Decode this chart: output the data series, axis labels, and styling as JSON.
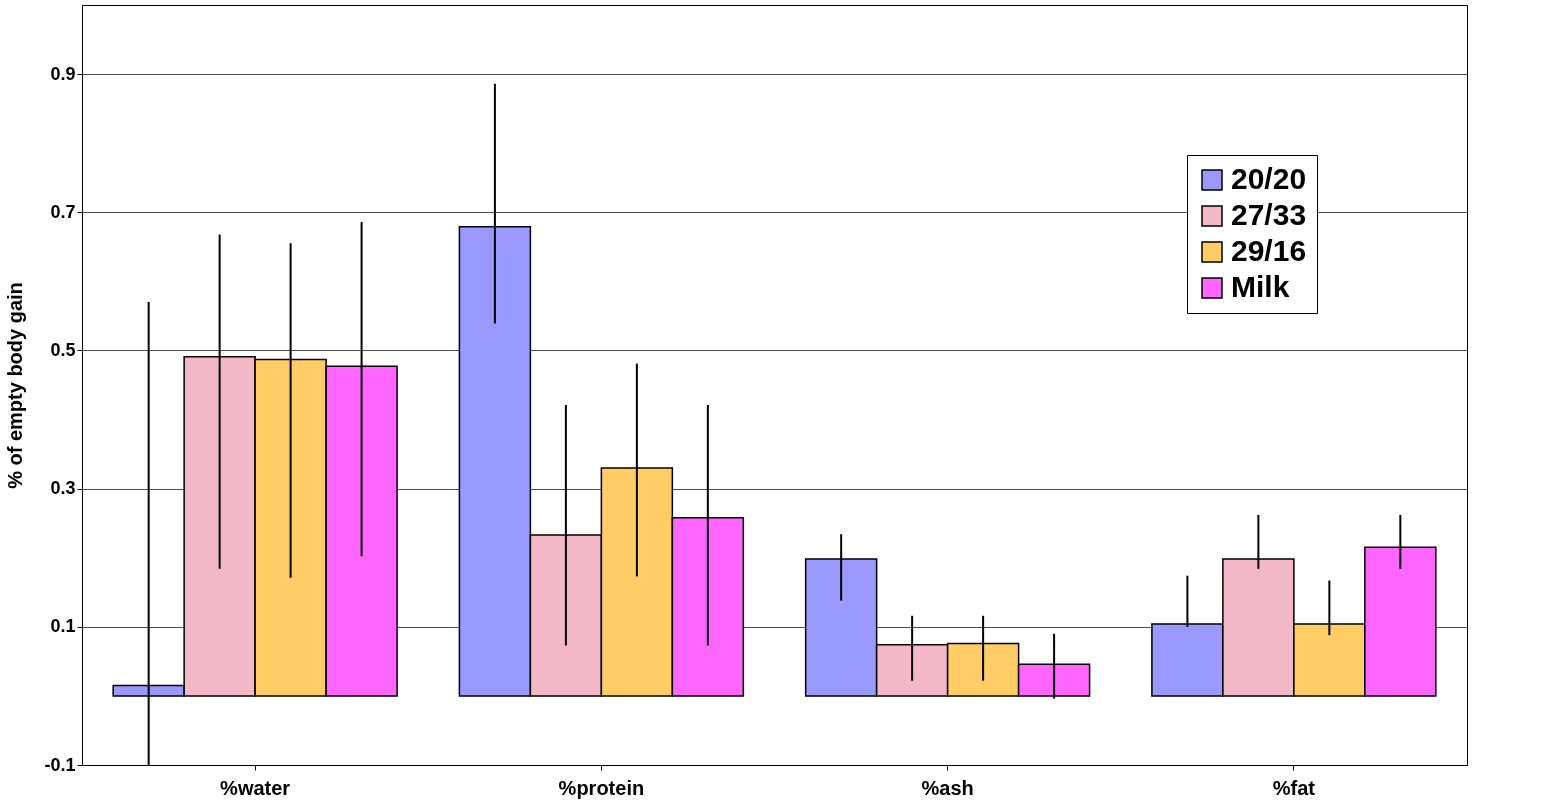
{
  "chart_data": {
    "type": "bar",
    "ylabel": "% of empty body gain",
    "categories": [
      "%water",
      "%protein",
      "%ash",
      "%fat"
    ],
    "series": [
      {
        "name": "20/20",
        "color": "#9999ff",
        "values": [
          0.015,
          0.679,
          0.198,
          0.104
        ],
        "errors": [
          [
            -0.1,
            0.57
          ],
          [
            0.539,
            0.886
          ],
          [
            0.138,
            0.234
          ],
          [
            0.1,
            0.174
          ]
        ]
      },
      {
        "name": "27/33",
        "color": "#f2b8c8",
        "values": [
          0.491,
          0.233,
          0.074,
          0.198
        ],
        "errors": [
          [
            0.184,
            0.668
          ],
          [
            0.073,
            0.421
          ],
          [
            0.022,
            0.116
          ],
          [
            0.184,
            0.262
          ]
        ]
      },
      {
        "name": "29/16",
        "color": "#ffcc66",
        "values": [
          0.487,
          0.33,
          0.076,
          0.104
        ],
        "errors": [
          [
            0.171,
            0.655
          ],
          [
            0.173,
            0.481
          ],
          [
            0.022,
            0.116
          ],
          [
            0.088,
            0.167
          ]
        ]
      },
      {
        "name": "Milk",
        "color": "#ff66ff",
        "values": [
          0.477,
          0.258,
          0.046,
          0.215
        ],
        "errors": [
          [
            0.202,
            0.686
          ],
          [
            0.073,
            0.421
          ],
          [
            -0.004,
            0.09
          ],
          [
            0.184,
            0.262
          ]
        ]
      }
    ],
    "ylim": [
      -0.1,
      1.0
    ],
    "yticks": [
      -0.1,
      0.1,
      0.3,
      0.5,
      0.7,
      0.9
    ],
    "grid": "y",
    "legend": "top right"
  }
}
